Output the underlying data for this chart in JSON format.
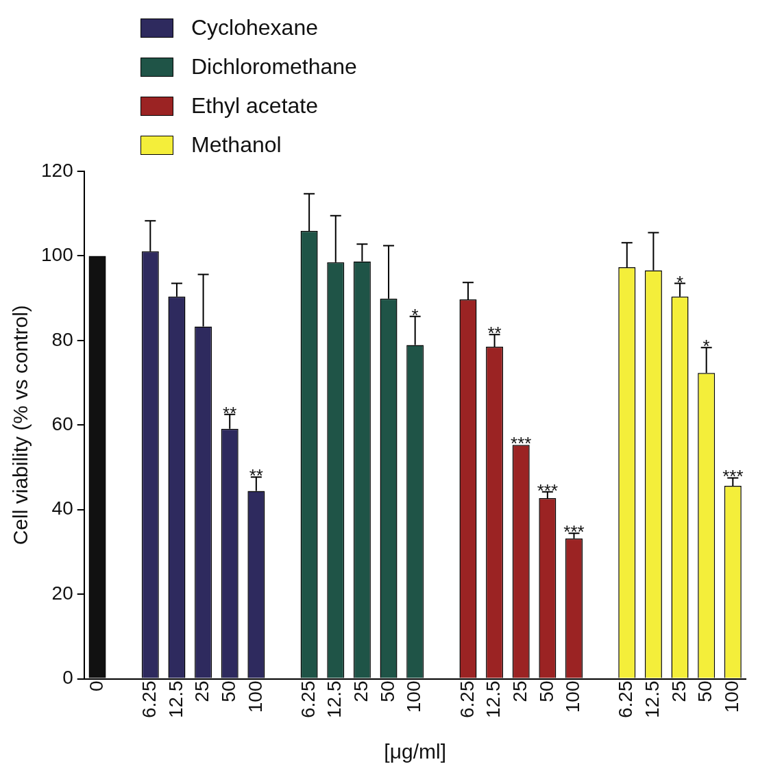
{
  "chart_data": {
    "type": "bar",
    "xlabel": "[μg/ml]",
    "ylabel": "Cell viability (% vs control)",
    "categories": [
      "0",
      null,
      "6.25",
      "12.5",
      "25",
      "50",
      "100",
      null,
      "6.25",
      "12.5",
      "25",
      "50",
      "100",
      null,
      "6.25",
      "12.5",
      "25",
      "50",
      "100",
      null,
      "6.25",
      "12.5",
      "25",
      "50",
      "100"
    ],
    "series": [
      {
        "color": "#111111",
        "values": [
          100,
          null,
          null,
          null,
          null,
          null,
          null,
          null,
          null,
          null,
          null,
          null,
          null,
          null,
          null,
          null,
          null,
          null,
          null,
          null,
          null,
          null,
          null,
          null,
          null
        ]
      },
      {
        "name": "Cyclohexane",
        "color": "#2e2a5e",
        "values": [
          null,
          null,
          101.1,
          90.4,
          83.3,
          59.1,
          44.4,
          null,
          null,
          null,
          null,
          null,
          null,
          null,
          null,
          null,
          null,
          null,
          null,
          null,
          null,
          null,
          null,
          null,
          null
        ],
        "errors": [
          null,
          null,
          [
            101.1,
            108.3
          ],
          [
            90.4,
            93.5
          ],
          [
            83.3,
            95.6
          ],
          [
            59.1,
            62.5
          ],
          [
            44.4,
            47.7
          ],
          null,
          null,
          null,
          null,
          null,
          null,
          null,
          null,
          null,
          null,
          null,
          null,
          null,
          null,
          null,
          null,
          null,
          null
        ],
        "value_labels": [
          null,
          null,
          null,
          null,
          null,
          "**",
          "**",
          null,
          null,
          null,
          null,
          null,
          null,
          null,
          null,
          null,
          null,
          null,
          null,
          null,
          null,
          null,
          null,
          null,
          null
        ]
      },
      {
        "name": "Dichloromethane",
        "color": "#1f5447",
        "values": [
          null,
          null,
          null,
          null,
          null,
          null,
          null,
          null,
          105.9,
          98.5,
          98.7,
          89.9,
          78.9,
          null,
          null,
          null,
          null,
          null,
          null,
          null,
          null,
          null,
          null,
          null,
          null
        ],
        "errors": [
          null,
          null,
          null,
          null,
          null,
          null,
          null,
          null,
          [
            105.9,
            114.7
          ],
          [
            98.5,
            109.5
          ],
          [
            98.7,
            102.8
          ],
          [
            89.9,
            102.4
          ],
          [
            78.9,
            85.7
          ],
          null,
          null,
          null,
          null,
          null,
          null,
          null,
          null,
          null,
          null,
          null,
          null
        ],
        "value_labels": [
          null,
          null,
          null,
          null,
          null,
          null,
          null,
          null,
          null,
          null,
          null,
          null,
          "*",
          null,
          null,
          null,
          null,
          null,
          null,
          null,
          null,
          null,
          null,
          null,
          null
        ]
      },
      {
        "name": "Ethyl acetate",
        "color": "#9b2323",
        "values": [
          null,
          null,
          null,
          null,
          null,
          null,
          null,
          null,
          null,
          null,
          null,
          null,
          null,
          null,
          89.7,
          78.5,
          55.3,
          42.7,
          33.2,
          null,
          null,
          null,
          null,
          null,
          null
        ],
        "errors": [
          null,
          null,
          null,
          null,
          null,
          null,
          null,
          null,
          null,
          null,
          null,
          null,
          null,
          null,
          [
            89.7,
            93.7
          ],
          [
            78.5,
            81.4
          ],
          null,
          [
            42.7,
            44.2
          ],
          [
            33.2,
            34.4
          ],
          null,
          null,
          null,
          null,
          null,
          null
        ],
        "value_labels": [
          null,
          null,
          null,
          null,
          null,
          null,
          null,
          null,
          null,
          null,
          null,
          null,
          null,
          null,
          null,
          "**",
          "***",
          "***",
          "***",
          null,
          null,
          null,
          null,
          null,
          null
        ]
      },
      {
        "name": "Methanol",
        "color": "#f4ee3a",
        "values": [
          null,
          null,
          null,
          null,
          null,
          null,
          null,
          null,
          null,
          null,
          null,
          null,
          null,
          null,
          null,
          null,
          null,
          null,
          null,
          null,
          97.3,
          96.6,
          90.4,
          72.3,
          45.6
        ],
        "errors": [
          null,
          null,
          null,
          null,
          null,
          null,
          null,
          null,
          null,
          null,
          null,
          null,
          null,
          null,
          null,
          null,
          null,
          null,
          null,
          null,
          [
            97.3,
            103.1
          ],
          [
            96.6,
            105.5
          ],
          [
            90.4,
            93.5
          ],
          [
            72.3,
            78.3
          ],
          [
            45.6,
            47.5
          ]
        ],
        "value_labels": [
          null,
          null,
          null,
          null,
          null,
          null,
          null,
          null,
          null,
          null,
          null,
          null,
          null,
          null,
          null,
          null,
          null,
          null,
          null,
          null,
          null,
          null,
          "*",
          "*",
          "***"
        ]
      }
    ],
    "ylim": [
      0,
      120
    ],
    "yticks": [
      0,
      20,
      40,
      60,
      80,
      100,
      120
    ],
    "legend": "top left"
  }
}
